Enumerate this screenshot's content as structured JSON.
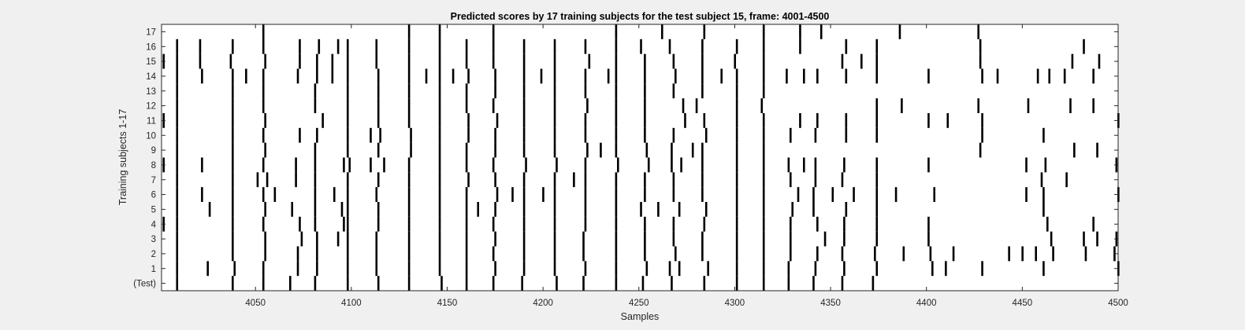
{
  "chart_data": {
    "type": "heatmap",
    "title": "Predicted scores by 17 training subjects for the test subject 15, frame: 4001-4500",
    "xlabel": "Samples",
    "ylabel": "Training subjects 1-17",
    "xlim": [
      4001,
      4500
    ],
    "xticks": [
      4050,
      4100,
      4150,
      4200,
      4250,
      4300,
      4350,
      4400,
      4450,
      4500
    ],
    "row_labels": [
      "(Test)",
      "1",
      "2",
      "3",
      "4",
      "5",
      "6",
      "7",
      "8",
      "9",
      "10",
      "11",
      "12",
      "13",
      "14",
      "15",
      "16",
      "17"
    ],
    "background_color": "#ffffff",
    "mark_color": "#000000",
    "grid": false,
    "rows": [
      {
        "label": "(Test)",
        "events": [
          4009,
          4038,
          4054,
          4068,
          4081,
          4098,
          4114,
          4130,
          4147,
          4160,
          4174,
          4189,
          4207,
          4221,
          4238,
          4252,
          4267,
          4284,
          4301,
          4315,
          4328,
          4341,
          4356,
          4372
        ]
      },
      {
        "label": "1",
        "events": [
          4009,
          4025,
          4039,
          4054,
          4072,
          4082,
          4098,
          4113,
          4130,
          4146,
          4160,
          4175,
          4190,
          4206,
          4222,
          4238,
          4254,
          4266,
          4271,
          4286,
          4301,
          4315,
          4328,
          4342,
          4357,
          4374,
          4403,
          4410,
          4429,
          4461,
          4500
        ]
      },
      {
        "label": "2",
        "events": [
          4009,
          4038,
          4055,
          4072,
          4082,
          4098,
          4113,
          4130,
          4146,
          4160,
          4174,
          4190,
          4206,
          4221,
          4238,
          4253,
          4269,
          4283,
          4301,
          4315,
          4329,
          4343,
          4356,
          4373,
          4388,
          4402,
          4414,
          4443,
          4450,
          4457,
          4466,
          4483,
          4498
        ]
      },
      {
        "label": "3",
        "events": [
          4009,
          4038,
          4055,
          4074,
          4082,
          4093,
          4098,
          4113,
          4130,
          4146,
          4160,
          4175,
          4190,
          4206,
          4221,
          4238,
          4253,
          4268,
          4283,
          4301,
          4315,
          4329,
          4347,
          4357,
          4374,
          4401,
          4465,
          4482,
          4489,
          4499
        ]
      },
      {
        "label": "4",
        "events": [
          4002,
          4009,
          4038,
          4054,
          4073,
          4081,
          4096,
          4098,
          4114,
          4130,
          4146,
          4160,
          4174,
          4190,
          4206,
          4222,
          4238,
          4253,
          4268,
          4284,
          4301,
          4315,
          4329,
          4343,
          4357,
          4374,
          4401,
          4463,
          4487
        ]
      },
      {
        "label": "5",
        "events": [
          4009,
          4026,
          4038,
          4055,
          4069,
          4081,
          4095,
          4098,
          4114,
          4130,
          4146,
          4160,
          4166,
          4175,
          4190,
          4206,
          4222,
          4238,
          4251,
          4260,
          4271,
          4285,
          4301,
          4315,
          4330,
          4341,
          4358,
          4374,
          4461
        ]
      },
      {
        "label": "6",
        "events": [
          4009,
          4022,
          4038,
          4054,
          4060,
          4081,
          4091,
          4098,
          4113,
          4130,
          4146,
          4160,
          4176,
          4184,
          4190,
          4200,
          4206,
          4222,
          4238,
          4253,
          4268,
          4283,
          4301,
          4315,
          4333,
          4341,
          4351,
          4362,
          4374,
          4384,
          4404,
          4452,
          4461,
          4500
        ]
      },
      {
        "label": "7",
        "events": [
          4009,
          4038,
          4051,
          4056,
          4071,
          4081,
          4098,
          4114,
          4130,
          4146,
          4161,
          4175,
          4190,
          4206,
          4216,
          4222,
          4238,
          4253,
          4268,
          4283,
          4301,
          4315,
          4329,
          4342,
          4356,
          4374,
          4460,
          4473
        ]
      },
      {
        "label": "8",
        "events": [
          4002,
          4009,
          4022,
          4038,
          4054,
          4071,
          4081,
          4096,
          4099,
          4110,
          4117,
          4130,
          4146,
          4160,
          4174,
          4191,
          4207,
          4222,
          4239,
          4255,
          4267,
          4272,
          4283,
          4301,
          4315,
          4328,
          4336,
          4342,
          4357,
          4374,
          4401,
          4452,
          4462,
          4499
        ]
      },
      {
        "label": "9",
        "events": [
          4009,
          4038,
          4055,
          4081,
          4098,
          4114,
          4131,
          4146,
          4160,
          4175,
          4190,
          4206,
          4223,
          4230,
          4238,
          4254,
          4267,
          4278,
          4283,
          4301,
          4315,
          4428,
          4477,
          4489
        ]
      },
      {
        "label": "10",
        "events": [
          4009,
          4038,
          4054,
          4073,
          4082,
          4098,
          4110,
          4115,
          4131,
          4146,
          4161,
          4175,
          4190,
          4206,
          4222,
          4238,
          4253,
          4268,
          4285,
          4301,
          4315,
          4329,
          4342,
          4358,
          4374,
          4429,
          4461
        ]
      },
      {
        "label": "11",
        "events": [
          4002,
          4009,
          4038,
          4055,
          4085,
          4098,
          4114,
          4130,
          4146,
          4161,
          4176,
          4190,
          4206,
          4222,
          4238,
          4253,
          4274,
          4284,
          4301,
          4315,
          4334,
          4343,
          4358,
          4374,
          4401,
          4411,
          4429,
          4500
        ]
      },
      {
        "label": "12",
        "events": [
          4009,
          4038,
          4054,
          4081,
          4098,
          4114,
          4130,
          4146,
          4160,
          4174,
          4190,
          4206,
          4223,
          4238,
          4253,
          4273,
          4280,
          4301,
          4314,
          4374,
          4387,
          4427,
          4453,
          4475,
          4487
        ]
      },
      {
        "label": "13",
        "events": [
          4009,
          4038,
          4054,
          4081,
          4098,
          4114,
          4130,
          4146,
          4160,
          4175,
          4190,
          4206,
          4222,
          4238,
          4253,
          4268,
          4283,
          4301,
          4315
        ]
      },
      {
        "label": "14",
        "events": [
          4009,
          4022,
          4038,
          4045,
          4054,
          4072,
          4082,
          4090,
          4098,
          4114,
          4130,
          4139,
          4146,
          4153,
          4161,
          4175,
          4190,
          4199,
          4206,
          4222,
          4234,
          4238,
          4253,
          4269,
          4283,
          4293,
          4301,
          4315,
          4327,
          4336,
          4343,
          4358,
          4374,
          4401,
          4429,
          4437,
          4458,
          4464,
          4472,
          4487
        ]
      },
      {
        "label": "15",
        "events": [
          4002,
          4009,
          4021,
          4037,
          4055,
          4073,
          4082,
          4090,
          4098,
          4113,
          4130,
          4146,
          4160,
          4174,
          4190,
          4206,
          4224,
          4238,
          4253,
          4268,
          4283,
          4300,
          4315,
          4356,
          4366,
          4374,
          4428,
          4476,
          4490
        ]
      },
      {
        "label": "16",
        "events": [
          4009,
          4021,
          4038,
          4054,
          4073,
          4083,
          4093,
          4098,
          4113,
          4130,
          4146,
          4160,
          4174,
          4190,
          4206,
          4222,
          4238,
          4251,
          4266,
          4283,
          4301,
          4315,
          4334,
          4358,
          4374,
          4428,
          4482
        ]
      },
      {
        "label": "17",
        "events": [
          4054,
          4130,
          4146,
          4174,
          4238,
          4262,
          4284,
          4315,
          4334,
          4345,
          4386,
          4427
        ]
      }
    ]
  }
}
